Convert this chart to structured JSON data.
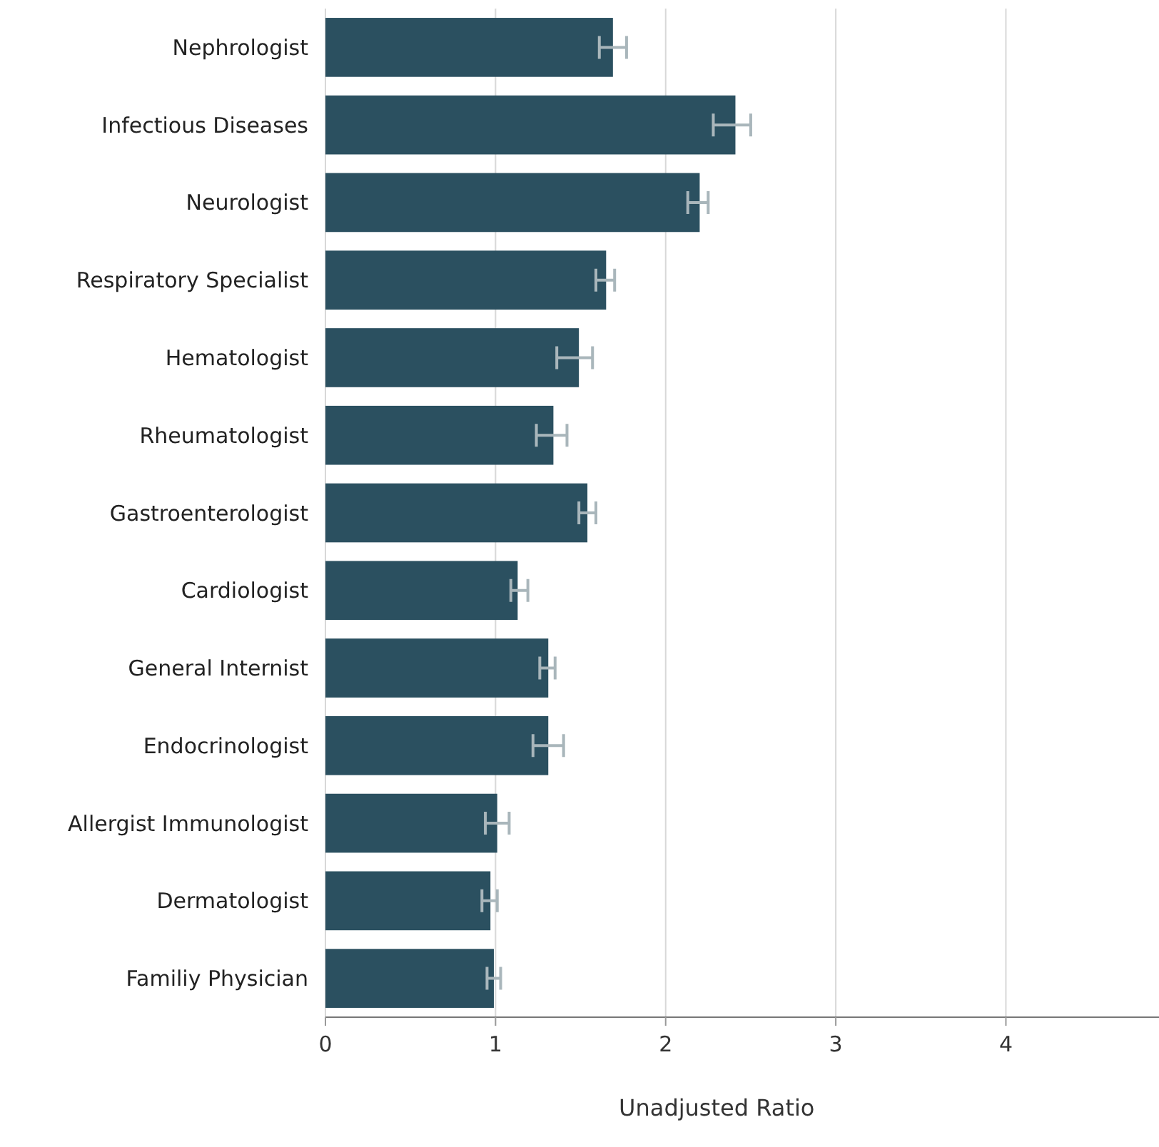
{
  "chart_data": {
    "type": "bar",
    "orientation": "horizontal",
    "xlabel": "Unadjusted Ratio",
    "categories": [
      "Nephrologist",
      "Infectious Diseases",
      "Neurologist",
      "Respiratory Specialist",
      "Hematologist",
      "Rheumatologist",
      "Gastroenterologist",
      "Cardiologist",
      "General Internist",
      "Endocrinologist",
      "Allergist Immunologist",
      "Dermatologist",
      "Familiy Physician"
    ],
    "values": [
      1.69,
      2.41,
      2.2,
      1.65,
      1.49,
      1.34,
      1.54,
      1.13,
      1.31,
      1.31,
      1.01,
      0.97,
      0.99
    ],
    "errors": [
      [
        1.61,
        1.77
      ],
      [
        2.28,
        2.5
      ],
      [
        2.13,
        2.25
      ],
      [
        1.59,
        1.7
      ],
      [
        1.36,
        1.57
      ],
      [
        1.24,
        1.42
      ],
      [
        1.49,
        1.59
      ],
      [
        1.09,
        1.19
      ],
      [
        1.26,
        1.35
      ],
      [
        1.22,
        1.4
      ],
      [
        0.94,
        1.08
      ],
      [
        0.92,
        1.01
      ],
      [
        0.95,
        1.03
      ]
    ],
    "color": "#2b5060",
    "xlim": [
      0,
      4.9
    ],
    "xticks": [
      0,
      1,
      2,
      3,
      4
    ],
    "grid": "x"
  }
}
